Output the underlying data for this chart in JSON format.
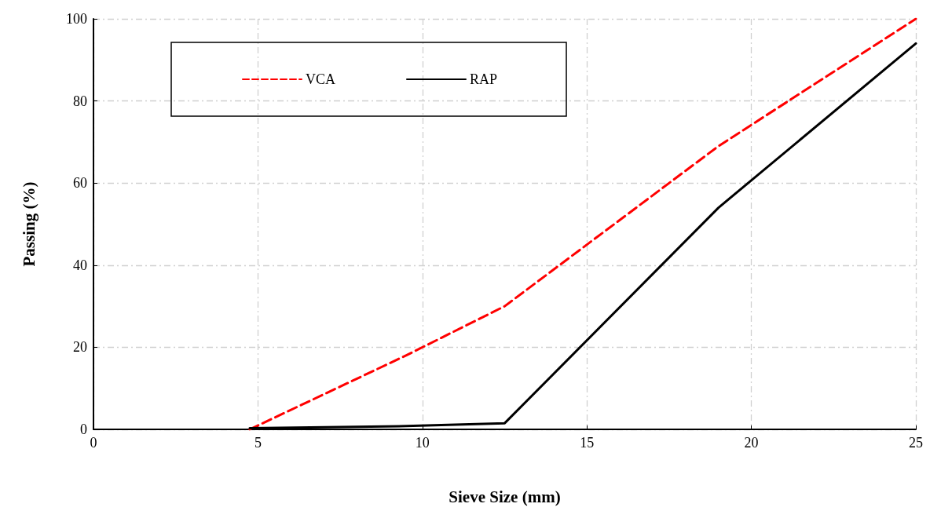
{
  "chart_data": {
    "type": "line",
    "xlabel": "Sieve Size (mm)",
    "ylabel": "Passing (%)",
    "xlim": [
      0,
      25
    ],
    "xticks": [
      0,
      5,
      10,
      15,
      20,
      25
    ],
    "ylim": [
      0,
      100
    ],
    "yticks": [
      0,
      20,
      40,
      60,
      80,
      100
    ],
    "grid": true,
    "legend": "top left",
    "marker": "none",
    "series": [
      {
        "name": "VCA",
        "color": "#ff0000",
        "line_style": "dashed",
        "x": [
          4.75,
          9.5,
          12.5,
          19,
          25
        ],
        "values": [
          0,
          18,
          30,
          69,
          100
        ]
      },
      {
        "name": "RAP",
        "color": "#000000",
        "line_style": "solid",
        "x": [
          4.75,
          9.5,
          12.5,
          19,
          25
        ],
        "values": [
          0.3,
          0.8,
          1.5,
          54,
          94
        ]
      }
    ]
  }
}
